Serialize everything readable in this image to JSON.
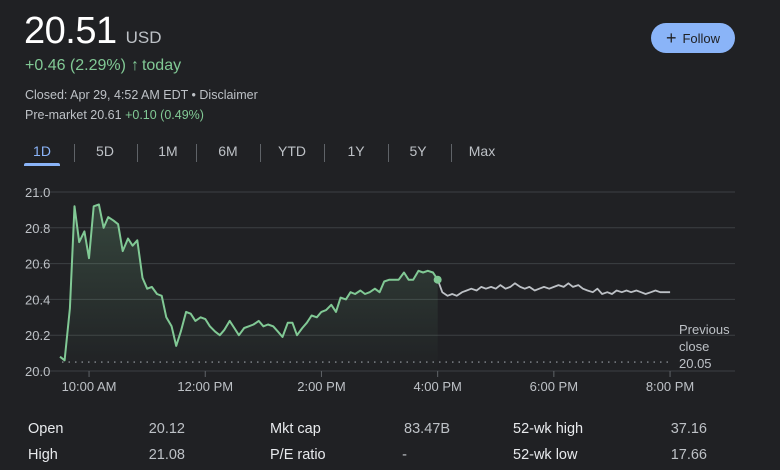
{
  "quote": {
    "price": "20.51",
    "currency": "USD",
    "change": "+0.46 (2.29%)",
    "change_arrow": "↑",
    "change_period": "today",
    "closed_text": "Closed: Apr 29, 4:52 AM EDT",
    "separator": " • ",
    "disclaimer": "Disclaimer",
    "premarket_label": "Pre-market 20.61",
    "premarket_change": "+0.10 (0.49%)"
  },
  "follow_button": {
    "icon": "plus-icon",
    "label": "Follow"
  },
  "tabs": [
    {
      "label": "1D",
      "active": true
    },
    {
      "label": "5D",
      "active": false
    },
    {
      "label": "1M",
      "active": false
    },
    {
      "label": "6M",
      "active": false
    },
    {
      "label": "YTD",
      "active": false
    },
    {
      "label": "1Y",
      "active": false
    },
    {
      "label": "5Y",
      "active": false
    },
    {
      "label": "Max",
      "active": false
    }
  ],
  "chart_data": {
    "type": "line",
    "y_tick_labels": [
      "21.0",
      "20.8",
      "20.6",
      "20.4",
      "20.2",
      "20.0"
    ],
    "y_ticks": [
      21.0,
      20.8,
      20.6,
      20.4,
      20.2,
      20.0
    ],
    "ylim": [
      20.0,
      21.0
    ],
    "x_tick_labels": [
      "10:00 AM",
      "12:00 PM",
      "2:00 PM",
      "4:00 PM",
      "6:00 PM",
      "8:00 PM"
    ],
    "x_ticks": [
      10,
      12,
      14,
      16,
      18,
      20
    ],
    "xlim": [
      9.3,
      21.0
    ],
    "grid": true,
    "previous_close": {
      "value": 20.05,
      "label_lines": [
        "Previous",
        "close",
        "20.05"
      ]
    },
    "regular_color": "#81c995",
    "extended_color": "#bdc1c6",
    "regular_session": [
      [
        9.5,
        20.08
      ],
      [
        9.58,
        20.06
      ],
      [
        9.67,
        20.35
      ],
      [
        9.75,
        20.92
      ],
      [
        9.83,
        20.72
      ],
      [
        9.92,
        20.78
      ],
      [
        10.0,
        20.63
      ],
      [
        10.08,
        20.92
      ],
      [
        10.17,
        20.93
      ],
      [
        10.25,
        20.8
      ],
      [
        10.33,
        20.86
      ],
      [
        10.42,
        20.84
      ],
      [
        10.5,
        20.82
      ],
      [
        10.58,
        20.67
      ],
      [
        10.67,
        20.74
      ],
      [
        10.75,
        20.7
      ],
      [
        10.83,
        20.73
      ],
      [
        10.92,
        20.52
      ],
      [
        11.0,
        20.46
      ],
      [
        11.08,
        20.47
      ],
      [
        11.17,
        20.43
      ],
      [
        11.25,
        20.42
      ],
      [
        11.33,
        20.3
      ],
      [
        11.42,
        20.25
      ],
      [
        11.5,
        20.14
      ],
      [
        11.58,
        20.22
      ],
      [
        11.67,
        20.33
      ],
      [
        11.75,
        20.32
      ],
      [
        11.83,
        20.28
      ],
      [
        11.92,
        20.3
      ],
      [
        12.0,
        20.29
      ],
      [
        12.08,
        20.25
      ],
      [
        12.17,
        20.22
      ],
      [
        12.25,
        20.2
      ],
      [
        12.33,
        20.23
      ],
      [
        12.42,
        20.28
      ],
      [
        12.5,
        20.24
      ],
      [
        12.58,
        20.2
      ],
      [
        12.67,
        20.24
      ],
      [
        12.75,
        20.25
      ],
      [
        12.83,
        20.26
      ],
      [
        12.92,
        20.28
      ],
      [
        13.0,
        20.25
      ],
      [
        13.08,
        20.26
      ],
      [
        13.17,
        20.25
      ],
      [
        13.25,
        20.22
      ],
      [
        13.33,
        20.19
      ],
      [
        13.42,
        20.27
      ],
      [
        13.5,
        20.27
      ],
      [
        13.58,
        20.2
      ],
      [
        13.67,
        20.24
      ],
      [
        13.75,
        20.27
      ],
      [
        13.83,
        20.31
      ],
      [
        13.92,
        20.3
      ],
      [
        14.0,
        20.33
      ],
      [
        14.08,
        20.34
      ],
      [
        14.17,
        20.37
      ],
      [
        14.25,
        20.33
      ],
      [
        14.33,
        20.41
      ],
      [
        14.42,
        20.4
      ],
      [
        14.5,
        20.44
      ],
      [
        14.58,
        20.43
      ],
      [
        14.67,
        20.45
      ],
      [
        14.75,
        20.43
      ],
      [
        14.83,
        20.44
      ],
      [
        14.92,
        20.46
      ],
      [
        15.0,
        20.44
      ],
      [
        15.08,
        20.5
      ],
      [
        15.17,
        20.51
      ],
      [
        15.25,
        20.51
      ],
      [
        15.33,
        20.51
      ],
      [
        15.42,
        20.55
      ],
      [
        15.5,
        20.51
      ],
      [
        15.58,
        20.51
      ],
      [
        15.67,
        20.56
      ],
      [
        15.75,
        20.55
      ],
      [
        15.83,
        20.56
      ],
      [
        15.92,
        20.55
      ],
      [
        16.0,
        20.51
      ]
    ],
    "extended_session": [
      [
        16.0,
        20.51
      ],
      [
        16.08,
        20.44
      ],
      [
        16.17,
        20.42
      ],
      [
        16.25,
        20.43
      ],
      [
        16.33,
        20.42
      ],
      [
        16.42,
        20.44
      ],
      [
        16.5,
        20.45
      ],
      [
        16.58,
        20.46
      ],
      [
        16.67,
        20.45
      ],
      [
        16.75,
        20.47
      ],
      [
        16.83,
        20.46
      ],
      [
        16.92,
        20.47
      ],
      [
        17.0,
        20.46
      ],
      [
        17.08,
        20.48
      ],
      [
        17.17,
        20.46
      ],
      [
        17.25,
        20.47
      ],
      [
        17.33,
        20.49
      ],
      [
        17.42,
        20.47
      ],
      [
        17.5,
        20.46
      ],
      [
        17.58,
        20.47
      ],
      [
        17.67,
        20.45
      ],
      [
        17.75,
        20.46
      ],
      [
        17.83,
        20.47
      ],
      [
        17.92,
        20.46
      ],
      [
        18.0,
        20.47
      ],
      [
        18.08,
        20.48
      ],
      [
        18.17,
        20.47
      ],
      [
        18.25,
        20.49
      ],
      [
        18.33,
        20.47
      ],
      [
        18.42,
        20.48
      ],
      [
        18.5,
        20.46
      ],
      [
        18.58,
        20.45
      ],
      [
        18.67,
        20.44
      ],
      [
        18.75,
        20.46
      ],
      [
        18.83,
        20.43
      ],
      [
        18.92,
        20.44
      ],
      [
        19.0,
        20.43
      ],
      [
        19.08,
        20.45
      ],
      [
        19.17,
        20.44
      ],
      [
        19.25,
        20.45
      ],
      [
        19.33,
        20.44
      ],
      [
        19.42,
        20.45
      ],
      [
        19.5,
        20.44
      ],
      [
        19.58,
        20.43
      ],
      [
        19.67,
        20.44
      ],
      [
        19.75,
        20.45
      ],
      [
        19.83,
        20.44
      ],
      [
        19.92,
        20.44
      ],
      [
        20.0,
        20.44
      ]
    ],
    "marker": [
      16.0,
      20.51
    ]
  },
  "stats": [
    {
      "label": "Open",
      "value": "20.12"
    },
    {
      "label": "Mkt cap",
      "value": "83.47B"
    },
    {
      "label": "52-wk high",
      "value": "37.16"
    },
    {
      "label": "High",
      "value": "21.08"
    },
    {
      "label": "P/E ratio",
      "value": "-"
    },
    {
      "label": "52-wk low",
      "value": "17.66"
    }
  ]
}
